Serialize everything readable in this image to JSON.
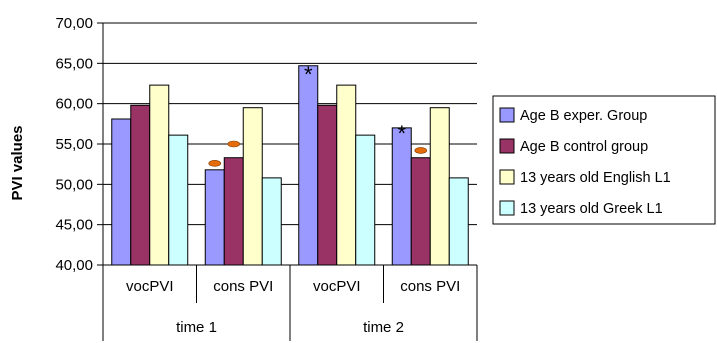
{
  "chart_data": {
    "type": "bar",
    "ylabel": "PVI values",
    "ylim": [
      40,
      70
    ],
    "yticks": [
      "40,00",
      "45,00",
      "50,00",
      "55,00",
      "60,00",
      "65,00",
      "70,00"
    ],
    "ytick_values": [
      40,
      45,
      50,
      55,
      60,
      65,
      70
    ],
    "grid": true,
    "legend_position": "right",
    "groups": [
      {
        "label": "time 1",
        "categories": [
          "vocPVI",
          "cons PVI"
        ]
      },
      {
        "label": "time 2",
        "categories": [
          "vocPVI",
          "cons PVI"
        ]
      }
    ],
    "categories": [
      "vocPVI",
      "cons PVI",
      "vocPVI",
      "cons PVI"
    ],
    "series": [
      {
        "name": "Age B exper. Group",
        "color": "#9999ff",
        "values": [
          58.1,
          51.8,
          64.7,
          57.0
        ]
      },
      {
        "name": "Age B control group",
        "color": "#993366",
        "values": [
          59.8,
          53.3,
          59.8,
          53.3
        ]
      },
      {
        "name": "13 years old English L1",
        "color": "#ffffcc",
        "values": [
          62.3,
          59.5,
          62.3,
          59.5
        ]
      },
      {
        "name": "13 years old Greek L1",
        "color": "#ccffff",
        "values": [
          56.1,
          50.8,
          56.1,
          50.8
        ]
      }
    ],
    "annotations": [
      {
        "type": "asterisk",
        "text": "*",
        "category_index": 2,
        "series_index": 0,
        "size": "large"
      },
      {
        "type": "asterisk",
        "text": "*",
        "category_index": 3,
        "series_index": 0,
        "size": "small"
      },
      {
        "type": "marker",
        "category_index": 1,
        "series_index": 0,
        "value": 52.6,
        "color": "#e46c0a"
      },
      {
        "type": "marker",
        "category_index": 1,
        "series_index": 1,
        "value": 55.0,
        "color": "#e46c0a"
      },
      {
        "type": "marker",
        "category_index": 3,
        "series_index": 1,
        "value": 54.2,
        "color": "#e46c0a"
      }
    ]
  }
}
